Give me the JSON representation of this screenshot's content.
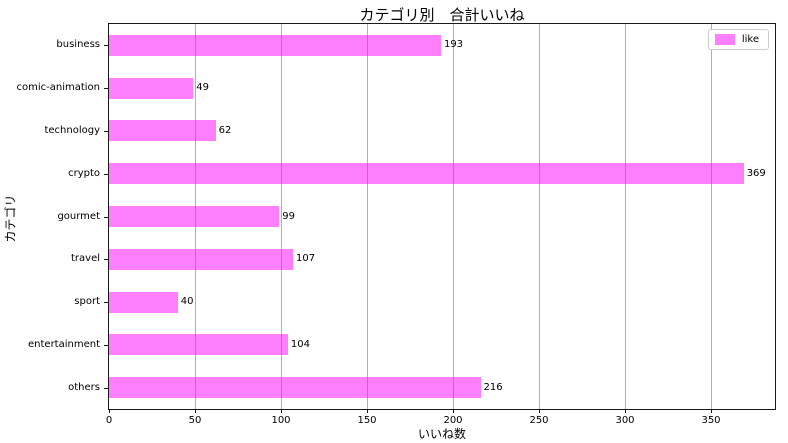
{
  "chart_data": {
    "type": "bar",
    "orientation": "horizontal",
    "title": "カテゴリ別　合計いいね",
    "xlabel": "いいね数",
    "ylabel": "カテゴリ",
    "categories": [
      "business",
      "comic-animation",
      "technology",
      "crypto",
      "gourmet",
      "travel",
      "sport",
      "entertainment",
      "others"
    ],
    "values": [
      193,
      49,
      62,
      369,
      99,
      107,
      40,
      104,
      216
    ],
    "x_ticks": [
      0,
      50,
      100,
      150,
      200,
      250,
      300,
      350
    ],
    "xlim": [
      0,
      387.2
    ],
    "grid": "vertical-only",
    "grid_color": "#b0b0b0",
    "bar_color": "rgba(255,0,255,0.5)",
    "bar_color_on_white_hex": "#ff80ff",
    "legend": {
      "position": "upper-right",
      "entries": [
        {
          "label": "like",
          "color": "#ff80ff"
        }
      ]
    }
  }
}
